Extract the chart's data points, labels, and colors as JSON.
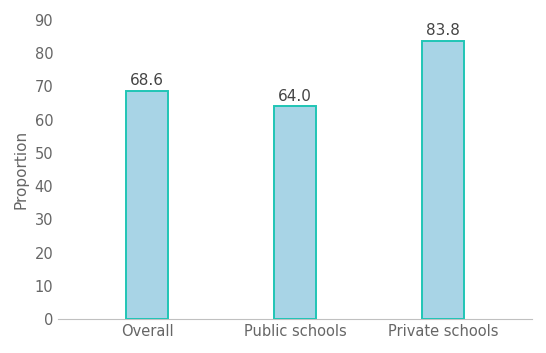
{
  "categories": [
    "Overall",
    "Public schools",
    "Private schools"
  ],
  "values": [
    68.6,
    64.0,
    83.8
  ],
  "bar_fill_color": "#a8d4e6",
  "bar_edge_color": "#20c5b5",
  "ylabel": "Proportion",
  "ylim": [
    0,
    90
  ],
  "yticks": [
    0,
    10,
    20,
    30,
    40,
    50,
    60,
    70,
    80,
    90
  ],
  "label_fontsize": 11,
  "axis_label_fontsize": 11,
  "tick_fontsize": 10.5,
  "bar_width": 0.28,
  "background_color": "#ffffff",
  "label_color": "#444444",
  "tick_color": "#666666"
}
